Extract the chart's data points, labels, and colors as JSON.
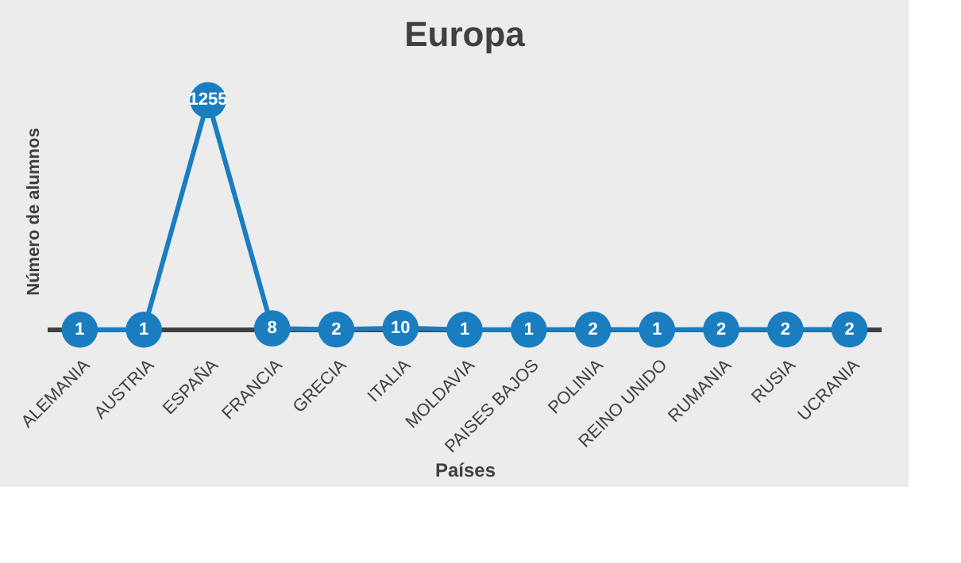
{
  "chart_data": {
    "type": "line",
    "title": "Europa",
    "xlabel": "Países",
    "ylabel": "Número de alumnos",
    "categories": [
      "ALEMANIA",
      "AUSTRIA",
      "ESPAÑA",
      "FRANCIA",
      "GRECIA",
      "ITALIA",
      "MOLDAVIA",
      "PAISES BAJOS",
      "POLINIA",
      "REINO UNIDO",
      "RUMANIA",
      "RUSIA",
      "UCRANIA"
    ],
    "series": [
      {
        "color": "#1a7dc0",
        "values": [
          1,
          1,
          1255,
          8,
          2,
          10,
          1,
          1,
          2,
          1,
          2,
          2,
          2
        ]
      }
    ],
    "tick_labels": "x",
    "marker": "circle",
    "line_style": "solid",
    "data_labels": true
  }
}
